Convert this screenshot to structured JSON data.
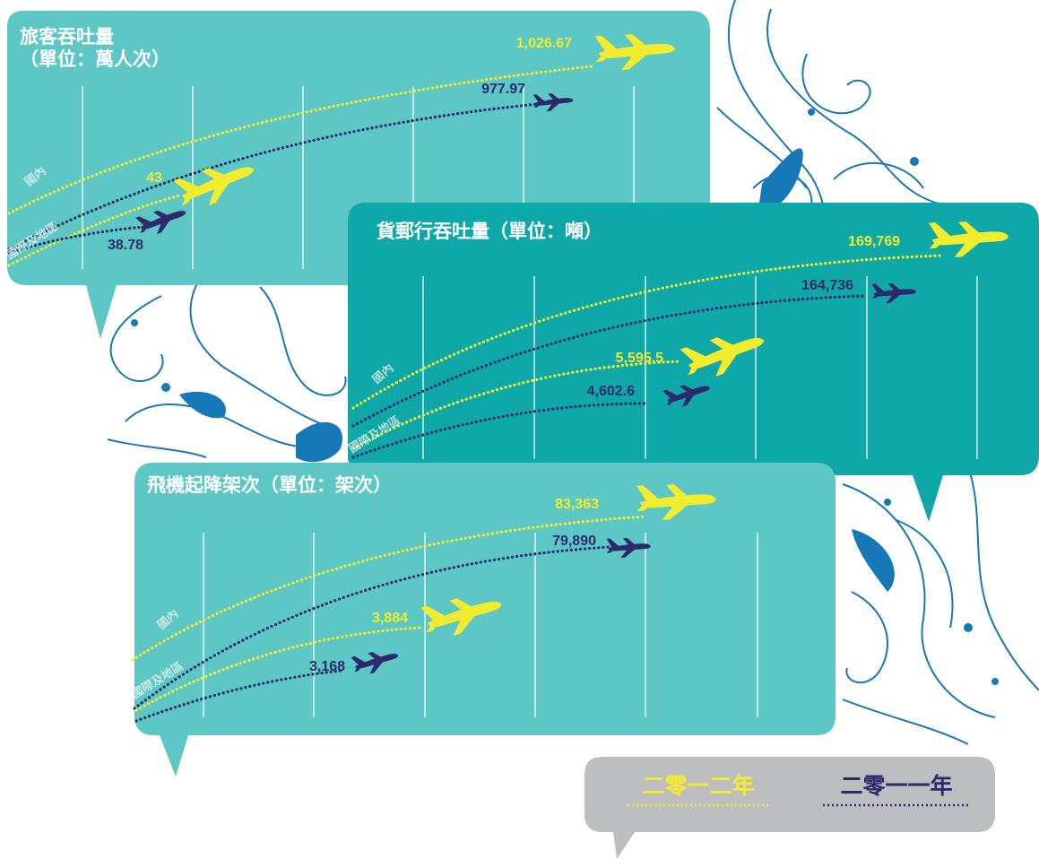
{
  "legend": {
    "series_2012": "二零一二年",
    "series_2011": "二零一一年"
  },
  "colors": {
    "series_2012": "#F2EC2E",
    "series_2011": "#2B2A6B",
    "panel_light": "#5CC7C5",
    "panel_dark": "#0FA8A8",
    "swirl": "#1778B8",
    "legend_bg": "#BDBEC0"
  },
  "chart_data": [
    {
      "type": "line",
      "title_lines": [
        "旅客吞吐量",
        "（單位：萬人次）"
      ],
      "categories": [
        "國內",
        "國際及地區"
      ],
      "series": [
        {
          "name": "二零一二年",
          "values": [
            1026.67,
            43
          ]
        },
        {
          "name": "二零一一年",
          "values": [
            977.97,
            38.78
          ]
        }
      ],
      "labels": {
        "domestic_2012": "1,026.67",
        "domestic_2011": "977.97",
        "intl_2012": "43",
        "intl_2011": "38.78"
      }
    },
    {
      "type": "line",
      "title_lines": [
        "貨郵行吞吐量（單位：噸）"
      ],
      "categories": [
        "國內",
        "國際及地區"
      ],
      "series": [
        {
          "name": "二零一二年",
          "values": [
            169769,
            5595.5
          ]
        },
        {
          "name": "二零一一年",
          "values": [
            164736,
            4602.6
          ]
        }
      ],
      "labels": {
        "domestic_2012": "169,769",
        "domestic_2011": "164,736",
        "intl_2012": "5,595.5",
        "intl_2011": "4,602.6"
      }
    },
    {
      "type": "line",
      "title_lines": [
        "飛機起降架次（單位：架次）"
      ],
      "categories": [
        "國內",
        "國際及地區"
      ],
      "series": [
        {
          "name": "二零一二年",
          "values": [
            83363,
            3884
          ]
        },
        {
          "name": "二零一一年",
          "values": [
            79890,
            3168
          ]
        }
      ],
      "labels": {
        "domestic_2012": "83,363",
        "domestic_2011": "79,890",
        "intl_2012": "3,884",
        "intl_2011": "3,168"
      }
    }
  ]
}
